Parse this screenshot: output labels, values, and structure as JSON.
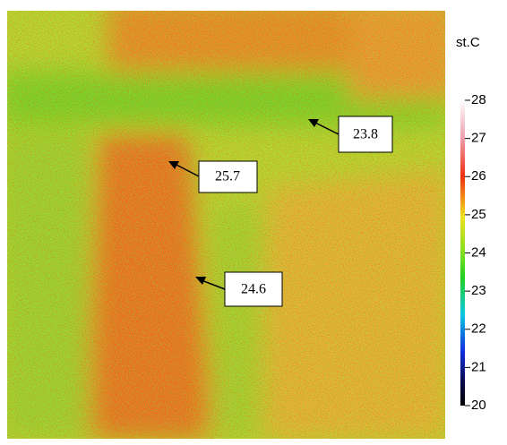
{
  "chart_data": {
    "type": "heatmap",
    "colorbar": {
      "label": "st.C",
      "lim": [
        20,
        28
      ],
      "ticks": [
        20,
        21,
        22,
        23,
        24,
        25,
        26,
        27,
        28
      ]
    },
    "annotations": [
      {
        "label": "23.8"
      },
      {
        "label": "25.7"
      },
      {
        "label": "24.6"
      }
    ]
  }
}
